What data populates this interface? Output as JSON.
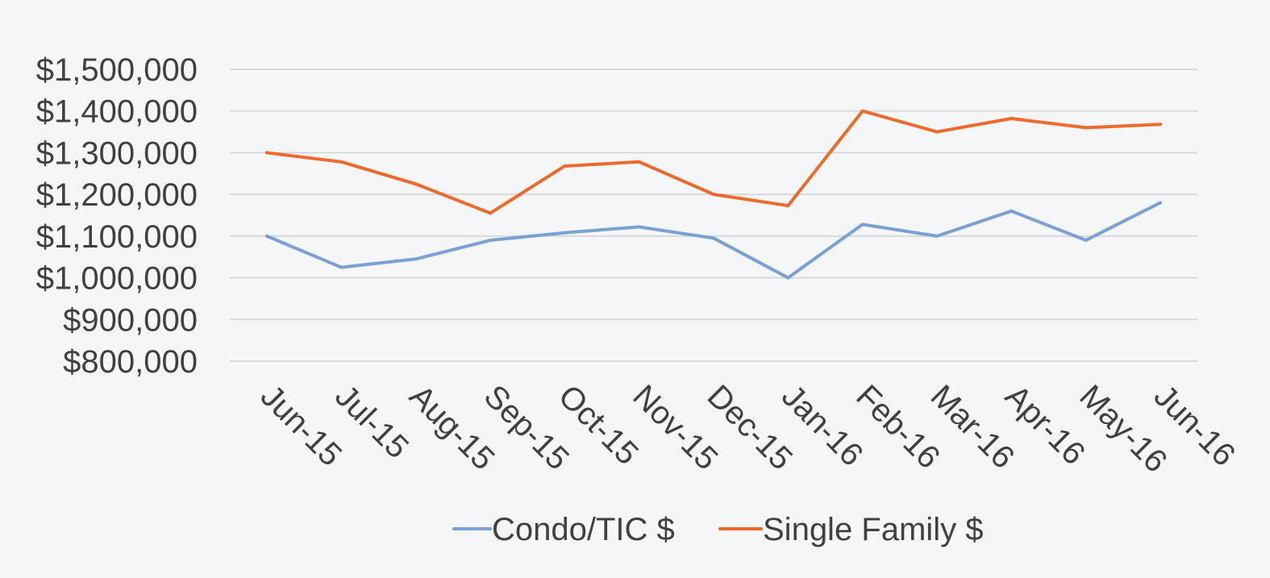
{
  "chart_data": {
    "type": "line",
    "title": "",
    "xlabel": "",
    "ylabel": "",
    "categories": [
      "Jun-15",
      "Jul-15",
      "Aug-15",
      "Sep-15",
      "Oct-15",
      "Nov-15",
      "Dec-15",
      "Jan-16",
      "Feb-16",
      "Mar-16",
      "Apr-16",
      "May-16",
      "Jun-16"
    ],
    "ylim": [
      800000,
      1500000
    ],
    "yticks": [
      800000,
      900000,
      1000000,
      1100000,
      1200000,
      1300000,
      1400000,
      1500000
    ],
    "ytick_labels": [
      "$800,000",
      "$900,000",
      "$1,000,000",
      "$1,100,000",
      "$1,200,000",
      "$1,300,000",
      "$1,400,000",
      "$1,500,000"
    ],
    "grid": true,
    "legend_position": "bottom",
    "series": [
      {
        "name": "Condo/TIC $",
        "color": "#7ba0d4",
        "values": [
          1100000,
          1025000,
          1045000,
          1090000,
          1108000,
          1122000,
          1095000,
          1000000,
          1128000,
          1100000,
          1160000,
          1090000,
          1180000
        ]
      },
      {
        "name": "Single Family $",
        "color": "#ee6a2c",
        "values": [
          1300000,
          1278000,
          1225000,
          1155000,
          1268000,
          1278000,
          1200000,
          1173000,
          1400000,
          1350000,
          1382000,
          1360000,
          1368000
        ]
      }
    ]
  }
}
